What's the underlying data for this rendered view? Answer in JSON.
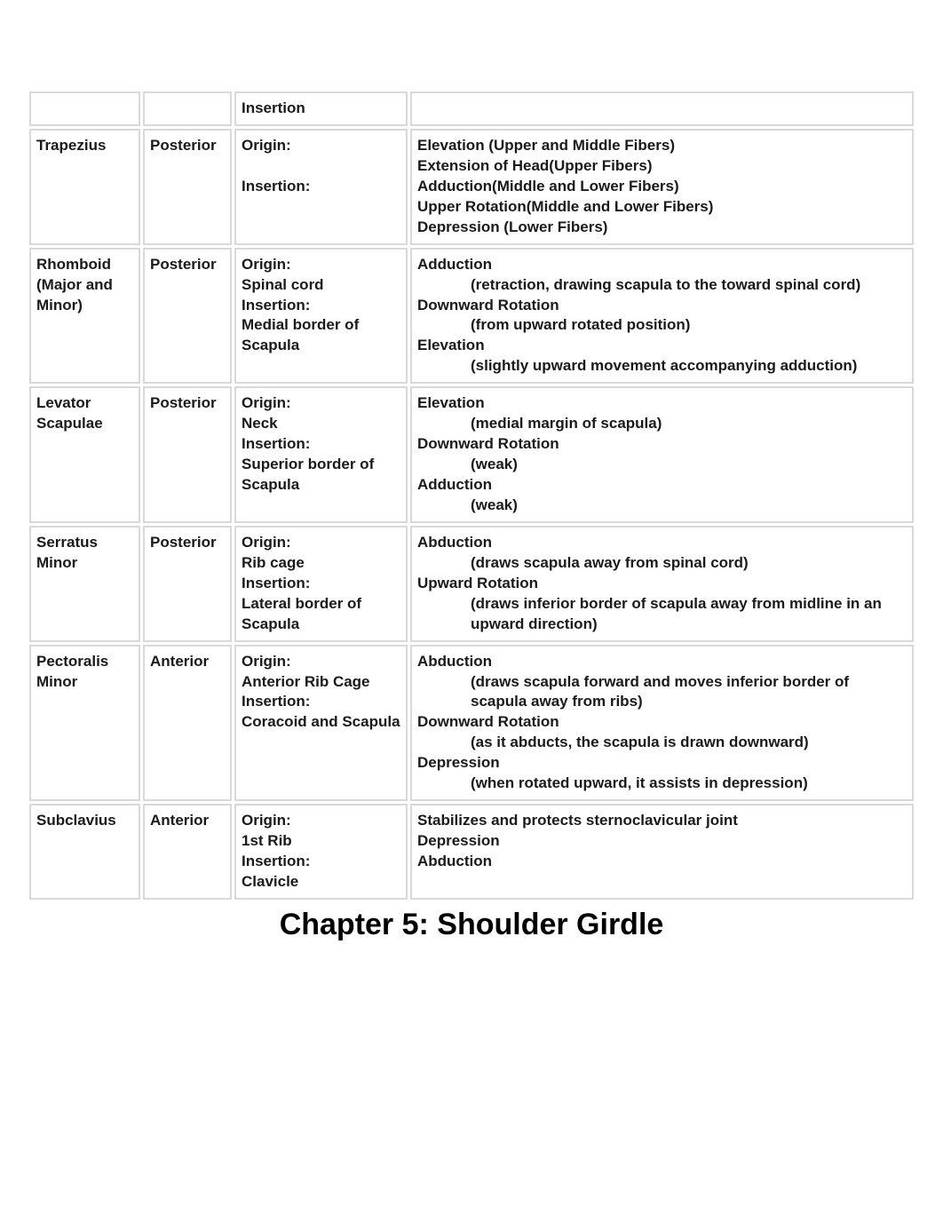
{
  "table": {
    "border_color": "#d9d9d9",
    "text_color": "#1a1a1a",
    "font_size": 17,
    "font_weight": "bold",
    "columns": {
      "muscle_width": 125,
      "position_width": 100,
      "oi_width": 195
    },
    "header": {
      "col3_label": "Insertion"
    },
    "rows": [
      {
        "muscle": "Trapezius",
        "position": "Posterior",
        "origin_label": "Origin:",
        "origin_text": "",
        "insertion_label": "Insertion:",
        "insertion_text": "",
        "spacer": true,
        "actions": [
          {
            "term": "Elevation (Upper and Middle Fibers)",
            "desc": ""
          },
          {
            "term": "Extension of Head(Upper Fibers)",
            "desc": ""
          },
          {
            "term": "Adduction(Middle and Lower Fibers)",
            "desc": ""
          },
          {
            "term": "Upper Rotation(Middle and Lower Fibers)",
            "desc": ""
          },
          {
            "term": " Depression (Lower Fibers)",
            "desc": ""
          }
        ]
      },
      {
        "muscle": "Rhomboid (Major and Minor)",
        "position": "Posterior",
        "origin_label": "Origin:",
        "origin_text": "Spinal cord",
        "insertion_label": "Insertion:",
        "insertion_text": "Medial border of Scapula",
        "spacer": false,
        "actions": [
          {
            "term": "Adduction",
            "desc": "(retraction, drawing scapula to the toward spinal cord)"
          },
          {
            "term": "Downward Rotation",
            "desc": "(from upward rotated position)"
          },
          {
            "term": "Elevation",
            "desc": "(slightly upward movement accompanying adduction)"
          }
        ]
      },
      {
        "muscle": "Levator Scapulae",
        "position": "Posterior",
        "origin_label": "Origin:",
        "origin_text": "Neck",
        "insertion_label": "Insertion:",
        "insertion_text": "Superior border of Scapula",
        "spacer": false,
        "actions": [
          {
            "term": "Elevation",
            "desc": "(medial margin of scapula)"
          },
          {
            "term": "Downward Rotation",
            "desc": "(weak)"
          },
          {
            "term": "Adduction",
            "desc": "(weak)"
          }
        ]
      },
      {
        "muscle": "Serratus Minor",
        "position": "Posterior",
        "origin_label": "Origin:",
        "origin_text": "Rib cage",
        "insertion_label": "Insertion:",
        "insertion_text": "Lateral border of Scapula",
        "spacer": false,
        "actions": [
          {
            "term": "Abduction",
            "desc": "(draws scapula away from spinal cord)"
          },
          {
            "term": "Upward Rotation",
            "desc": "(draws inferior border of scapula away from midline in an upward direction)"
          }
        ]
      },
      {
        "muscle": "Pectoralis Minor",
        "position": "Anterior",
        "origin_label": "Origin:",
        "origin_text": "Anterior Rib Cage",
        "insertion_label": "Insertion:",
        "insertion_text": "Coracoid and Scapula",
        "spacer": false,
        "actions": [
          {
            "term": "Abduction",
            "desc": "(draws scapula forward and moves inferior border of scapula away from ribs)"
          },
          {
            "term": "Downward Rotation",
            "desc": "(as it abducts, the scapula is drawn downward)"
          },
          {
            "term": "Depression",
            "desc": "(when rotated upward, it assists in depression)"
          }
        ]
      },
      {
        "muscle": "Subclavius",
        "position": "Anterior",
        "origin_label": "Origin:",
        "origin_text": "1st Rib",
        "insertion_label": "Insertion:",
        "insertion_text": "Clavicle",
        "spacer": false,
        "actions": [
          {
            "term": "Stabilizes and protects sternoclavicular joint",
            "desc": ""
          },
          {
            "term": "Depression",
            "desc": ""
          },
          {
            "term": "Abduction",
            "desc": ""
          }
        ]
      }
    ]
  },
  "chapter_title": "Chapter 5: Shoulder Girdle",
  "chapter_title_fontsize": 34
}
